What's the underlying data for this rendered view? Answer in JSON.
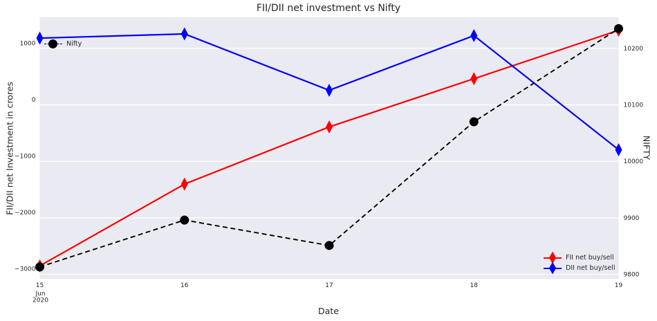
{
  "chart_data": {
    "type": "line",
    "title": "FII/DII net investment vs Nifty",
    "xlabel": "Date",
    "x_tick_labels": [
      "15",
      "16",
      "17",
      "18",
      "19"
    ],
    "x_first_tick_sublines": [
      "Jun",
      "2020"
    ],
    "left_axis": {
      "label": "FII/DII net Investment in crores",
      "range": [
        -3180,
        1460
      ],
      "ticks": [
        {
          "label": "1000",
          "value": 1000
        },
        {
          "label": "0",
          "value": 0
        },
        {
          "label": "−1000",
          "value": -1000
        },
        {
          "label": "−2000",
          "value": -2000
        },
        {
          "label": "−3000",
          "value": -3000
        }
      ]
    },
    "right_axis": {
      "label": "NIFTY",
      "range": [
        9792,
        10255
      ],
      "ticks": [
        {
          "label": "10200",
          "value": 10200
        },
        {
          "label": "10100",
          "value": 10100
        },
        {
          "label": "10000",
          "value": 10000
        },
        {
          "label": "9900",
          "value": 9900
        },
        {
          "label": "9800",
          "value": 9800
        }
      ]
    },
    "series": [
      {
        "name": "FII net buy/sell",
        "axis": "left",
        "color": "#ff0000",
        "marker": "thin-diamond",
        "line_style": "solid",
        "values": [
          -2950,
          -1500,
          -485,
          370,
          1230
        ]
      },
      {
        "name": "DII net buy/sell",
        "axis": "left",
        "color": "#0000ff",
        "marker": "thin-diamond",
        "line_style": "solid",
        "values": [
          1090,
          1165,
          165,
          1135,
          -890
        ]
      },
      {
        "name": "Nifty",
        "axis": "right",
        "color": "#000000",
        "marker": "circle",
        "line_style": "dashed",
        "values": [
          9813,
          9896,
          9851,
          10070,
          10235
        ]
      }
    ],
    "plot_background": "#eaeaf2",
    "gridline_color": "#ffffff",
    "text_color": "#262626",
    "grid_from_axis": "right",
    "legend_positions": {
      "nifty": "upper left",
      "main": "lower right"
    }
  }
}
